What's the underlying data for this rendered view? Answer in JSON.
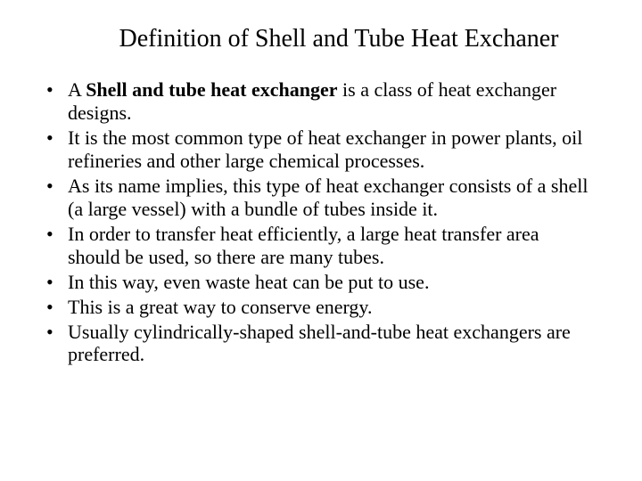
{
  "title": "Definition of Shell and Tube Heat Exchaner",
  "bullets": [
    {
      "pre": "A ",
      "bold": "Shell and tube heat exchanger",
      "post": " is a class of heat exchanger designs."
    },
    {
      "pre": "",
      "bold": "",
      "post": "It is the most common type of heat exchanger in power plants, oil refineries and other large chemical processes."
    },
    {
      "pre": "",
      "bold": "",
      "post": "As its name implies, this type of heat exchanger consists of a shell (a large vessel) with a bundle of tubes inside it."
    },
    {
      "pre": "",
      "bold": "",
      "post": "In order to transfer heat efficiently, a large heat transfer area should be used, so there are many tubes."
    },
    {
      "pre": "",
      "bold": "",
      "post": "In this way, even waste heat can be put to use."
    },
    {
      "pre": "",
      "bold": "",
      "post": "This is a great way to conserve energy."
    },
    {
      "pre": "",
      "bold": "",
      "post": "Usually cylindrically-shaped shell-and-tube heat exchangers are preferred."
    }
  ],
  "style": {
    "background_color": "#ffffff",
    "text_color": "#000000",
    "title_fontsize": 28,
    "body_fontsize": 22,
    "font_family": "Times New Roman"
  }
}
